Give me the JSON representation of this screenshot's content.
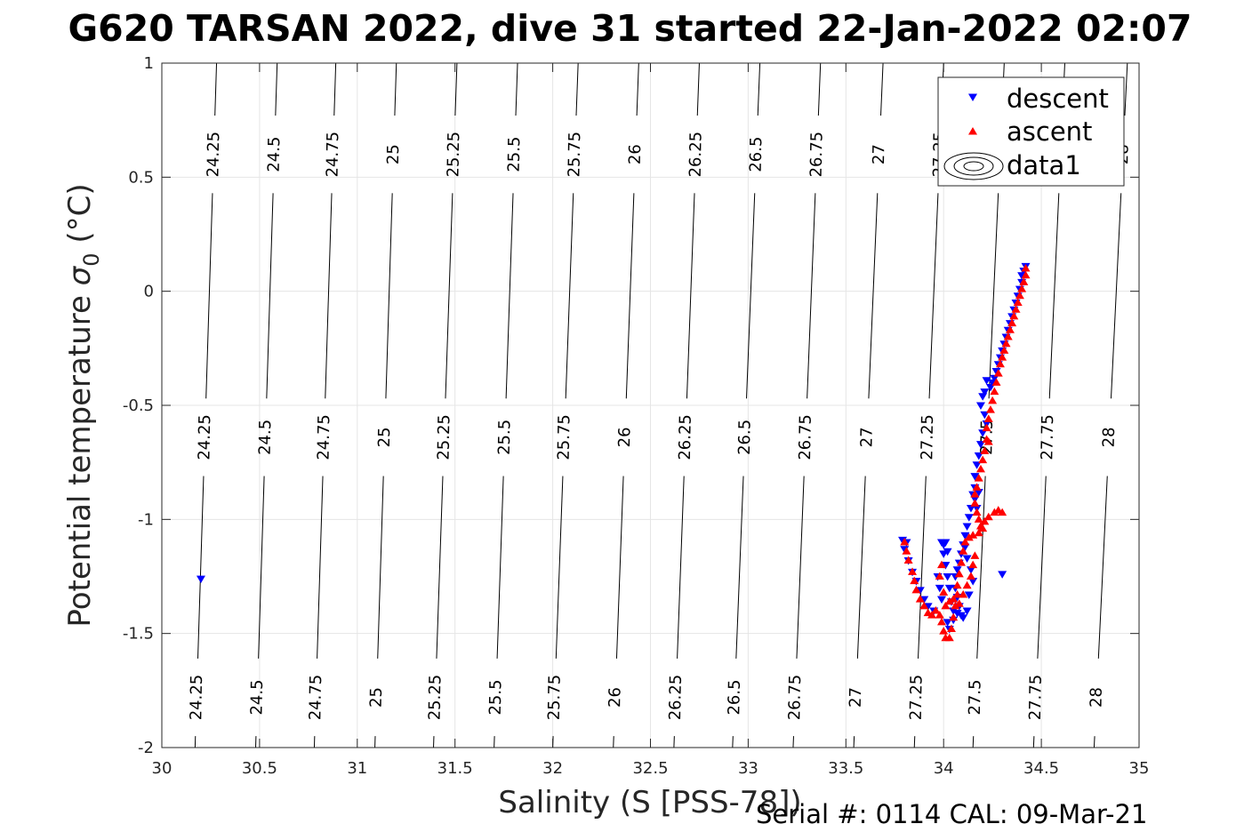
{
  "title": "G620 TARSAN 2022, dive 31 started 22-Jan-2022 02:07",
  "footer": "Serial #: 0114  CAL: 09-Mar-21",
  "colors": {
    "descent": "#0000ff",
    "ascent": "#ff0000",
    "contour": "#000000",
    "grid": "#e5e5e5"
  },
  "chart_data": {
    "type": "scatter",
    "xlabel": "Salinity (S [PSS-78])",
    "ylabel_main": "Potential temperature ",
    "ylabel_sigma": "σ",
    "ylabel_sub": "0",
    "ylabel_unit": " (°C)",
    "xlim": [
      30,
      35
    ],
    "ylim": [
      -2,
      1
    ],
    "xticks": [
      "30",
      "30.5",
      "31",
      "31.5",
      "32",
      "32.5",
      "33",
      "33.5",
      "34",
      "34.5",
      "35"
    ],
    "yticks": [
      "-2",
      "-1.5",
      "-1",
      "-0.5",
      "0",
      "0.5",
      "1"
    ],
    "grid": true,
    "legend_position": "top-right",
    "legend": [
      "descent",
      "ascent",
      "data1"
    ],
    "contours": [
      {
        "label": "24.25",
        "x_bottom": 30.17,
        "x_top": 30.28
      },
      {
        "label": "24.5",
        "x_bottom": 30.48,
        "x_top": 30.59
      },
      {
        "label": "24.75",
        "x_bottom": 30.78,
        "x_top": 30.89
      },
      {
        "label": "25",
        "x_bottom": 31.09,
        "x_top": 31.2
      },
      {
        "label": "25.25",
        "x_bottom": 31.39,
        "x_top": 31.51
      },
      {
        "label": "25.5",
        "x_bottom": 31.7,
        "x_top": 31.82
      },
      {
        "label": "25.75",
        "x_bottom": 32.0,
        "x_top": 32.13
      },
      {
        "label": "26",
        "x_bottom": 32.31,
        "x_top": 32.44
      },
      {
        "label": "26.25",
        "x_bottom": 32.62,
        "x_top": 32.75
      },
      {
        "label": "26.5",
        "x_bottom": 32.92,
        "x_top": 33.06
      },
      {
        "label": "26.75",
        "x_bottom": 33.23,
        "x_top": 33.37
      },
      {
        "label": "27",
        "x_bottom": 33.54,
        "x_top": 33.69
      },
      {
        "label": "27.25",
        "x_bottom": 33.85,
        "x_top": 34.0
      },
      {
        "label": "27.5",
        "x_bottom": 34.15,
        "x_top": 34.31
      },
      {
        "label": "27.75",
        "x_bottom": 34.46,
        "x_top": 34.62
      },
      {
        "label": "28",
        "x_bottom": 34.77,
        "x_top": 34.94
      }
    ],
    "label_rows_y": [
      0.6,
      -0.64,
      -1.78
    ],
    "series": [
      {
        "name": "descent",
        "marker": "triangle-down",
        "points": [
          [
            30.2,
            -1.26
          ],
          [
            34.3,
            -1.24
          ],
          [
            34.42,
            0.11
          ],
          [
            34.41,
            0.09
          ],
          [
            34.4,
            0.07
          ],
          [
            34.4,
            0.04
          ],
          [
            34.39,
            0.01
          ],
          [
            34.38,
            -0.02
          ],
          [
            34.37,
            -0.05
          ],
          [
            34.36,
            -0.08
          ],
          [
            34.35,
            -0.11
          ],
          [
            34.34,
            -0.14
          ],
          [
            34.33,
            -0.17
          ],
          [
            34.32,
            -0.2
          ],
          [
            34.31,
            -0.23
          ],
          [
            34.3,
            -0.26
          ],
          [
            34.29,
            -0.29
          ],
          [
            34.28,
            -0.32
          ],
          [
            34.27,
            -0.35
          ],
          [
            34.26,
            -0.38
          ],
          [
            34.25,
            -0.4
          ],
          [
            34.24,
            -0.42
          ],
          [
            34.22,
            -0.39
          ],
          [
            34.21,
            -0.44
          ],
          [
            34.2,
            -0.46
          ],
          [
            34.19,
            -0.5
          ],
          [
            34.21,
            -0.54
          ],
          [
            34.22,
            -0.58
          ],
          [
            34.2,
            -0.62
          ],
          [
            34.19,
            -0.67
          ],
          [
            34.18,
            -0.72
          ],
          [
            34.17,
            -0.76
          ],
          [
            34.16,
            -0.81
          ],
          [
            34.16,
            -0.86
          ],
          [
            34.15,
            -0.89
          ],
          [
            34.16,
            -0.91
          ],
          [
            34.18,
            -0.88
          ],
          [
            34.17,
            -0.95
          ],
          [
            34.14,
            -0.95
          ],
          [
            34.13,
            -0.99
          ],
          [
            34.12,
            -1.03
          ],
          [
            34.11,
            -1.07
          ],
          [
            34.1,
            -1.11
          ],
          [
            34.09,
            -1.15
          ],
          [
            34.08,
            -1.19
          ],
          [
            34.07,
            -1.22
          ],
          [
            34.06,
            -1.25
          ],
          [
            34.06,
            -1.3
          ],
          [
            34.07,
            -1.34
          ],
          [
            34.08,
            -1.38
          ],
          [
            34.09,
            -1.42
          ],
          [
            34.05,
            -1.4
          ],
          [
            34.04,
            -1.36
          ],
          [
            34.03,
            -1.3
          ],
          [
            34.02,
            -1.25
          ],
          [
            34.01,
            -1.2
          ],
          [
            34.0,
            -1.15
          ],
          [
            33.99,
            -1.1
          ],
          [
            34.0,
            -1.11
          ],
          [
            34.01,
            -1.1
          ],
          [
            34.02,
            -1.14
          ],
          [
            33.97,
            -1.25
          ],
          [
            33.98,
            -1.3
          ],
          [
            33.99,
            -1.35
          ],
          [
            33.95,
            -1.4
          ],
          [
            33.92,
            -1.38
          ],
          [
            33.9,
            -1.35
          ],
          [
            33.88,
            -1.31
          ],
          [
            33.86,
            -1.27
          ],
          [
            33.84,
            -1.23
          ],
          [
            33.82,
            -1.18
          ],
          [
            33.8,
            -1.13
          ],
          [
            33.79,
            -1.09
          ],
          [
            33.81,
            -1.1
          ],
          [
            34.02,
            -1.45
          ],
          [
            34.03,
            -1.48
          ],
          [
            34.05,
            -1.44
          ],
          [
            34.07,
            -1.41
          ],
          [
            34.1,
            -1.43
          ],
          [
            34.12,
            -1.4
          ],
          [
            34.13,
            -1.33
          ],
          [
            34.15,
            -1.27
          ],
          [
            34.14,
            -1.22
          ],
          [
            34.12,
            -1.17
          ],
          [
            34.11,
            -1.12
          ]
        ]
      },
      {
        "name": "ascent",
        "marker": "triangle-up",
        "points": [
          [
            34.42,
            0.1
          ],
          [
            34.42,
            0.07
          ],
          [
            34.41,
            0.04
          ],
          [
            34.4,
            0.01
          ],
          [
            34.39,
            -0.02
          ],
          [
            34.38,
            -0.05
          ],
          [
            34.37,
            -0.08
          ],
          [
            34.36,
            -0.11
          ],
          [
            34.35,
            -0.14
          ],
          [
            34.34,
            -0.17
          ],
          [
            34.33,
            -0.2
          ],
          [
            34.32,
            -0.23
          ],
          [
            34.31,
            -0.26
          ],
          [
            34.3,
            -0.29
          ],
          [
            34.29,
            -0.32
          ],
          [
            34.28,
            -0.36
          ],
          [
            34.27,
            -0.4
          ],
          [
            34.26,
            -0.44
          ],
          [
            34.25,
            -0.48
          ],
          [
            34.24,
            -0.52
          ],
          [
            34.23,
            -0.56
          ],
          [
            34.22,
            -0.6
          ],
          [
            34.22,
            -0.65
          ],
          [
            34.21,
            -0.7
          ],
          [
            34.2,
            -0.74
          ],
          [
            34.19,
            -0.78
          ],
          [
            34.18,
            -0.82
          ],
          [
            34.17,
            -0.86
          ],
          [
            34.16,
            -0.89
          ],
          [
            34.16,
            -0.93
          ],
          [
            34.17,
            -0.97
          ],
          [
            34.18,
            -1.0
          ],
          [
            34.19,
            -1.03
          ],
          [
            34.21,
            -1.01
          ],
          [
            34.23,
            -0.99
          ],
          [
            34.26,
            -0.97
          ],
          [
            34.28,
            -0.96
          ],
          [
            34.2,
            -1.04
          ],
          [
            34.18,
            -1.06
          ],
          [
            34.15,
            -1.07
          ],
          [
            34.13,
            -1.08
          ],
          [
            34.11,
            -1.1
          ],
          [
            34.1,
            -1.14
          ],
          [
            34.09,
            -1.19
          ],
          [
            34.08,
            -1.24
          ],
          [
            34.07,
            -1.29
          ],
          [
            34.07,
            -1.33
          ],
          [
            34.06,
            -1.38
          ],
          [
            34.05,
            -1.43
          ],
          [
            34.04,
            -1.48
          ],
          [
            34.03,
            -1.52
          ],
          [
            34.01,
            -1.52
          ],
          [
            34.0,
            -1.49
          ],
          [
            33.99,
            -1.45
          ],
          [
            33.98,
            -1.42
          ],
          [
            33.96,
            -1.4
          ],
          [
            33.94,
            -1.42
          ],
          [
            33.92,
            -1.41
          ],
          [
            33.9,
            -1.38
          ],
          [
            33.88,
            -1.35
          ],
          [
            33.86,
            -1.31
          ],
          [
            33.85,
            -1.27
          ],
          [
            33.84,
            -1.23
          ],
          [
            33.82,
            -1.18
          ],
          [
            33.81,
            -1.14
          ],
          [
            33.8,
            -1.1
          ],
          [
            33.99,
            -1.2
          ],
          [
            33.98,
            -1.25
          ],
          [
            34.0,
            -1.32
          ],
          [
            34.01,
            -1.38
          ],
          [
            34.03,
            -1.36
          ],
          [
            34.05,
            -1.35
          ],
          [
            34.08,
            -1.37
          ],
          [
            34.1,
            -1.33
          ],
          [
            34.12,
            -1.29
          ],
          [
            34.14,
            -1.25
          ],
          [
            34.15,
            -1.2
          ],
          [
            34.16,
            -1.16
          ],
          [
            34.23,
            -0.66
          ],
          [
            34.3,
            -0.97
          ]
        ]
      }
    ]
  }
}
